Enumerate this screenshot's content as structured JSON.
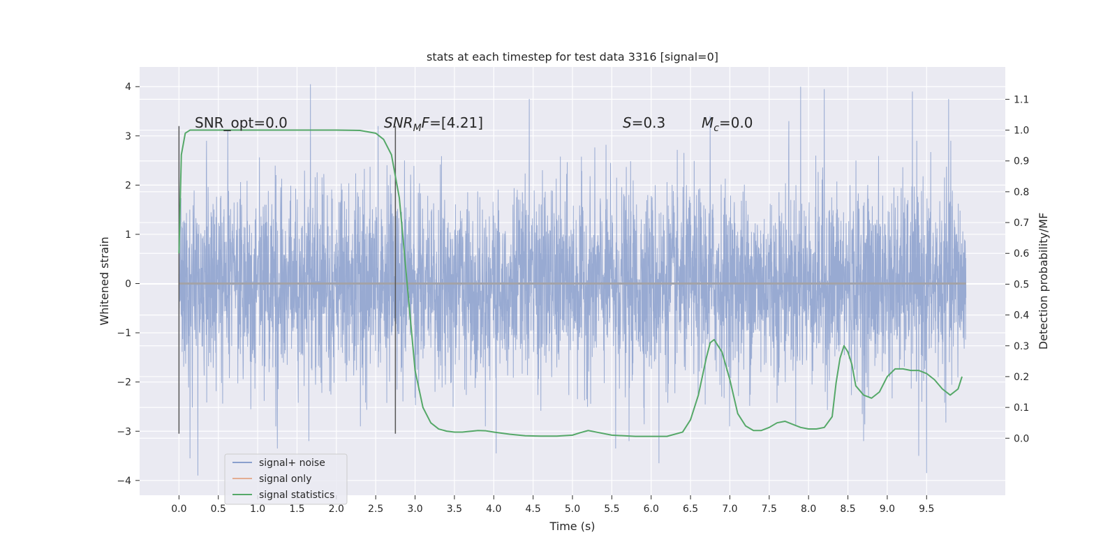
{
  "chart_data": {
    "type": "line",
    "title": "stats at each timestep for test data 3316 [signal=0]",
    "xlabel": "Time (s)",
    "ylabel": "Whitened strain",
    "y2label": "Detection probability/MF",
    "xlim": [
      -0.5,
      10.5
    ],
    "ylim": [
      -4.3,
      4.4
    ],
    "y2lim": [
      -0.185,
      1.205
    ],
    "x_ticks": [
      0.0,
      0.5,
      1.0,
      1.5,
      2.0,
      2.5,
      3.0,
      3.5,
      4.0,
      4.5,
      5.0,
      5.5,
      6.0,
      6.5,
      7.0,
      7.5,
      8.0,
      8.5,
      9.0,
      9.5
    ],
    "x_tick_labels": [
      "0.0",
      "0.5",
      "1.0",
      "1.5",
      "2.0",
      "2.5",
      "3.0",
      "3.5",
      "4.0",
      "4.5",
      "5.0",
      "5.5",
      "6.0",
      "6.5",
      "7.0",
      "7.5",
      "8.0",
      "8.5",
      "9.0",
      "9.5"
    ],
    "y_ticks": [
      4,
      3,
      2,
      1,
      0,
      -1,
      -2,
      -3,
      -4
    ],
    "y_tick_labels": [
      "4",
      "3",
      "2",
      "1",
      "0",
      "−1",
      "−2",
      "−3",
      "−4"
    ],
    "y2_ticks": [
      1.1,
      1.0,
      0.9,
      0.8,
      0.7,
      0.6,
      0.5,
      0.4,
      0.3,
      0.2,
      0.1,
      0.0
    ],
    "y2_tick_labels": [
      "1.1",
      "1.0",
      "0.9",
      "0.8",
      "0.7",
      "0.6",
      "0.5",
      "0.4",
      "0.3",
      "0.2",
      "0.1",
      "0.0"
    ],
    "grid": true,
    "legend_position": "lower-left",
    "series": [
      {
        "name": "signal+ noise",
        "color": "#8a9fcc",
        "axis": "left",
        "x_range": [
          0.0,
          10.0
        ],
        "amplitude_band": [
          -1.3,
          1.3
        ],
        "typical_extremes": [
          -2.3,
          2.3
        ],
        "peak_values": [
          {
            "x": 0.14,
            "y": -3.55
          },
          {
            "x": 0.24,
            "y": -3.9
          },
          {
            "x": 0.35,
            "y": 2.9
          },
          {
            "x": 0.62,
            "y": 3.1
          },
          {
            "x": 1.25,
            "y": -3.35
          },
          {
            "x": 1.67,
            "y": 4.05
          },
          {
            "x": 1.65,
            "y": -3.2
          },
          {
            "x": 2.53,
            "y": 3.2
          },
          {
            "x": 4.03,
            "y": -3.45
          },
          {
            "x": 4.45,
            "y": 3.75
          },
          {
            "x": 5.55,
            "y": -3.35
          },
          {
            "x": 5.72,
            "y": -3.2
          },
          {
            "x": 6.1,
            "y": -3.65
          },
          {
            "x": 6.75,
            "y": 3.4
          },
          {
            "x": 7.75,
            "y": 3.3
          },
          {
            "x": 7.9,
            "y": 4.0
          },
          {
            "x": 8.2,
            "y": 3.95
          },
          {
            "x": 8.7,
            "y": -3.2
          },
          {
            "x": 9.32,
            "y": 3.9
          },
          {
            "x": 9.4,
            "y": -3.5
          },
          {
            "x": 9.5,
            "y": -3.85
          },
          {
            "x": 9.78,
            "y": 3.75
          }
        ]
      },
      {
        "name": "signal only",
        "color": "#dd8452",
        "axis": "left",
        "x": [
          0.0,
          10.0
        ],
        "y": [
          0.0,
          0.0
        ]
      },
      {
        "name": "signal statistics",
        "color": "#55a868",
        "axis": "right",
        "x": [
          0.0,
          0.03,
          0.08,
          0.14,
          0.2,
          0.3,
          0.5,
          1.0,
          1.5,
          2.0,
          2.3,
          2.5,
          2.6,
          2.7,
          2.8,
          2.9,
          3.0,
          3.1,
          3.2,
          3.3,
          3.4,
          3.5,
          3.6,
          3.8,
          3.9,
          4.0,
          4.2,
          4.4,
          4.6,
          4.8,
          5.0,
          5.1,
          5.2,
          5.3,
          5.5,
          5.8,
          6.0,
          6.2,
          6.4,
          6.5,
          6.6,
          6.7,
          6.75,
          6.8,
          6.9,
          7.0,
          7.1,
          7.2,
          7.3,
          7.4,
          7.5,
          7.6,
          7.7,
          7.8,
          7.9,
          8.0,
          8.1,
          8.2,
          8.3,
          8.35,
          8.4,
          8.45,
          8.5,
          8.55,
          8.6,
          8.7,
          8.8,
          8.9,
          9.0,
          9.1,
          9.2,
          9.3,
          9.4,
          9.5,
          9.6,
          9.7,
          9.8,
          9.9,
          9.95
        ],
        "y": [
          0.6,
          0.92,
          0.99,
          1.0,
          1.0,
          1.0,
          1.0,
          1.0,
          1.0,
          1.0,
          0.999,
          0.99,
          0.97,
          0.92,
          0.78,
          0.5,
          0.22,
          0.1,
          0.05,
          0.03,
          0.023,
          0.02,
          0.02,
          0.025,
          0.024,
          0.02,
          0.013,
          0.008,
          0.007,
          0.007,
          0.01,
          0.018,
          0.025,
          0.02,
          0.01,
          0.006,
          0.006,
          0.006,
          0.02,
          0.06,
          0.14,
          0.26,
          0.31,
          0.32,
          0.28,
          0.19,
          0.08,
          0.04,
          0.025,
          0.025,
          0.035,
          0.05,
          0.055,
          0.045,
          0.035,
          0.03,
          0.03,
          0.035,
          0.07,
          0.18,
          0.26,
          0.3,
          0.28,
          0.24,
          0.17,
          0.14,
          0.13,
          0.15,
          0.2,
          0.225,
          0.225,
          0.22,
          0.22,
          0.21,
          0.19,
          0.16,
          0.14,
          0.16,
          0.2
        ]
      }
    ],
    "vertical_markers": [
      {
        "x": 0.0,
        "y_range": [
          -3.05,
          3.2
        ]
      },
      {
        "x": 2.75,
        "y_range": [
          -3.05,
          3.2
        ]
      }
    ],
    "annotations": [
      {
        "text": "SNR_opt=0.0",
        "x": 0.2,
        "y": 3.2
      },
      {
        "text": "=[4.21]",
        "x": 2.6,
        "y": 3.2
      },
      {
        "text": "=0.3",
        "x": 5.6,
        "y": 3.2
      },
      {
        "text": "=0.0",
        "x": 6.6,
        "y": 3.2
      }
    ]
  }
}
